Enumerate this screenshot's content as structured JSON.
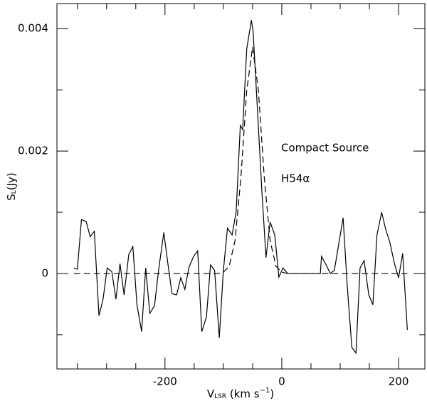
{
  "chart_data": {
    "type": "line",
    "xlabel": [
      "V",
      "LSR",
      " (km s",
      "−1",
      ")"
    ],
    "ylabel": [
      "S",
      "L",
      "(Jy)"
    ],
    "annotations": [
      "Compact Source",
      "H54α"
    ],
    "xlim": [
      -385,
      245
    ],
    "ylim": [
      -0.00156,
      0.00441
    ],
    "xticks": [
      -200,
      0,
      200
    ],
    "xminor_ticks": [
      -350,
      -300,
      -250,
      -150,
      -100,
      -50,
      50,
      100,
      150
    ],
    "yticks": [
      0,
      0.002,
      0.004
    ],
    "yminor_ticks": [
      -0.001,
      0.001,
      0.003
    ],
    "color": "#000000",
    "series": [
      {
        "style": "solid",
        "x": [
          -356,
          -350,
          -343,
          -335,
          -328,
          -321,
          -313,
          -306,
          -299,
          -291,
          -284,
          -277,
          -270,
          -262,
          -255,
          -248,
          -240,
          -233,
          -226,
          -218,
          -211,
          -202,
          -195,
          -188,
          -180,
          -173,
          -166,
          -159,
          -151,
          -144,
          -137,
          -129,
          -122,
          -115,
          -107,
          -100,
          -93,
          -85,
          -78,
          -71,
          -67,
          -60,
          -52,
          -49,
          -41,
          -34,
          -27,
          -20,
          -12,
          -5,
          2,
          10,
          66,
          68,
          76,
          83,
          90,
          105,
          112,
          120,
          127,
          134,
          141,
          149,
          156,
          163,
          171,
          178,
          185,
          193,
          200,
          207,
          215
        ],
        "values": [
          9e-05,
          7e-05,
          0.00088,
          0.00085,
          0.0006,
          0.00069,
          -0.00069,
          -0.00042,
          9e-05,
          3e-05,
          -0.00042,
          0.00016,
          -0.00035,
          0.00031,
          0.00044,
          -0.00051,
          -0.00095,
          9e-05,
          -0.00065,
          -0.00053,
          5e-05,
          0.00067,
          0.00016,
          -0.00033,
          -0.00035,
          -7e-05,
          -0.00026,
          0.0001,
          0.00028,
          0.00037,
          -0.00095,
          -0.00071,
          0.00014,
          5e-05,
          -0.00105,
          5e-05,
          0.00074,
          0.00063,
          0.00102,
          0.00242,
          0.00235,
          0.00367,
          0.00414,
          0.00394,
          0.00256,
          0.00133,
          0.00026,
          0.00084,
          0.00063,
          -6e-05,
          9e-05,
          0,
          0,
          0.00028,
          0.00014,
          0,
          5e-05,
          0.00091,
          -0.00019,
          -0.00121,
          -0.0013,
          9e-05,
          0.00021,
          -0.00035,
          -0.00051,
          0.00063,
          0.001,
          0.00072,
          0.00051,
          0.00016,
          -7e-05,
          0.00033,
          -0.00092
        ]
      },
      {
        "style": "dashed",
        "x": [
          -356,
          -120,
          -110,
          -100,
          -90,
          -80,
          -70,
          -60,
          -50,
          -40,
          -30,
          -20,
          -10,
          0,
          10,
          215
        ],
        "values": [
          0,
          0,
          0,
          2e-05,
          0.00012,
          0.00054,
          0.00157,
          0.00299,
          0.0037,
          0.00299,
          0.00157,
          0.00054,
          0.00012,
          2e-05,
          0,
          0
        ]
      }
    ]
  }
}
